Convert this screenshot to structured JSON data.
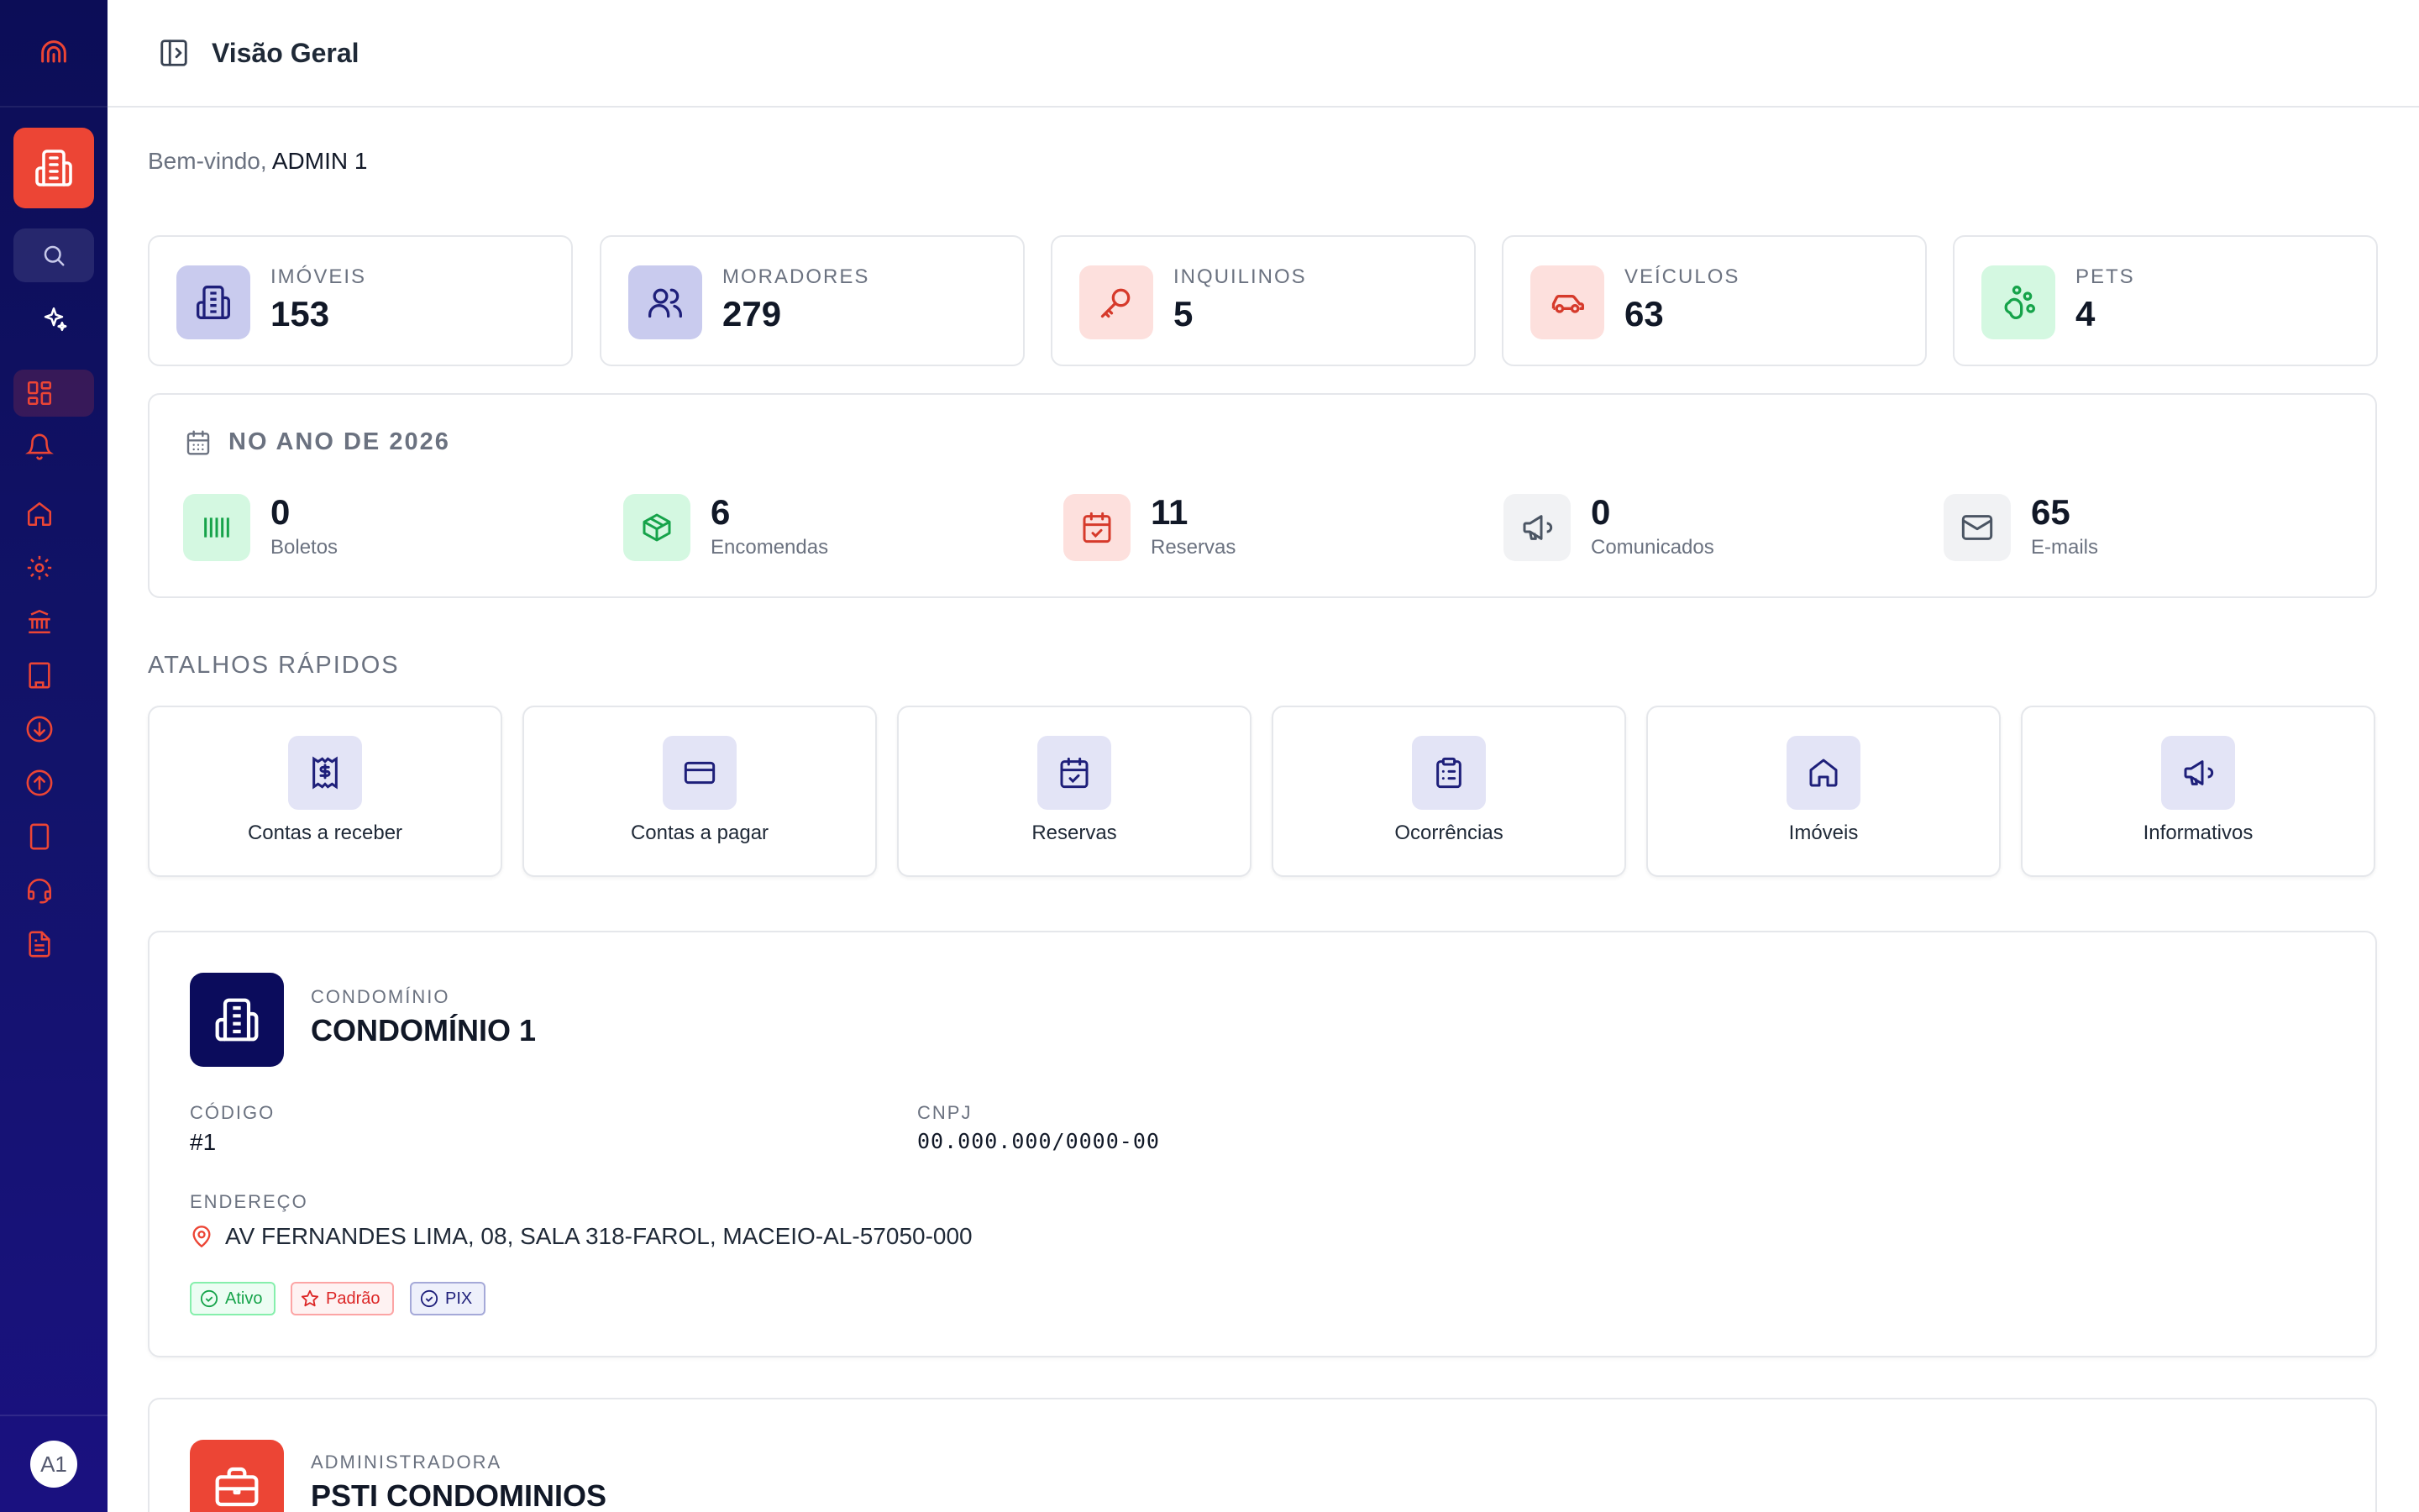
{
  "header": {
    "title": "Visão Geral"
  },
  "welcome": {
    "prefix": "Bem-vindo,",
    "user": "ADMIN 1"
  },
  "user": {
    "initials": "A1"
  },
  "stats": [
    {
      "label": "IMÓVEIS",
      "value": "153",
      "icon": "building-icon",
      "bg": "#c9cbee",
      "color": "#1e1f7a"
    },
    {
      "label": "MORADORES",
      "value": "279",
      "icon": "users-icon",
      "bg": "#c9cbee",
      "color": "#1e1f7a"
    },
    {
      "label": "INQUILINOS",
      "value": "5",
      "icon": "key-icon",
      "bg": "#fde0dd",
      "color": "#d63a2b"
    },
    {
      "label": "VEÍCULOS",
      "value": "63",
      "icon": "car-icon",
      "bg": "#fde0dd",
      "color": "#d63a2b"
    },
    {
      "label": "PETS",
      "value": "4",
      "icon": "paw-icon",
      "bg": "#d4f8e1",
      "color": "#16a34a"
    }
  ],
  "year": {
    "title": "NO ANO DE 2026",
    "metrics": [
      {
        "value": "0",
        "label": "Boletos",
        "icon": "barcode-icon",
        "bg": "#d4f8e1",
        "color": "#16a34a"
      },
      {
        "value": "6",
        "label": "Encomendas",
        "icon": "package-icon",
        "bg": "#d4f8e1",
        "color": "#16a34a"
      },
      {
        "value": "11",
        "label": "Reservas",
        "icon": "calendar-check-icon",
        "bg": "#fde0dd",
        "color": "#d63a2b"
      },
      {
        "value": "0",
        "label": "Comunicados",
        "icon": "megaphone-icon",
        "bg": "#f1f2f4",
        "color": "#4b5563"
      },
      {
        "value": "65",
        "label": "E-mails",
        "icon": "mail-icon",
        "bg": "#f1f2f4",
        "color": "#4b5563"
      }
    ]
  },
  "shortcuts": {
    "title": "ATALHOS RÁPIDOS",
    "items": [
      {
        "label": "Contas a receber",
        "icon": "receipt-icon"
      },
      {
        "label": "Contas a pagar",
        "icon": "credit-card-icon"
      },
      {
        "label": "Reservas",
        "icon": "calendar-check-icon"
      },
      {
        "label": "Ocorrências",
        "icon": "clipboard-list-icon"
      },
      {
        "label": "Imóveis",
        "icon": "home-icon"
      },
      {
        "label": "Informativos",
        "icon": "megaphone-icon"
      }
    ]
  },
  "condo": {
    "kicker": "CONDOMÍNIO",
    "name": "CONDOMÍNIO 1",
    "code_label": "CÓDIGO",
    "code": "#1",
    "cnpj_label": "CNPJ",
    "cnpj": "00.000.000/0000-00",
    "address_label": "ENDEREÇO",
    "address": "AV FERNANDES LIMA, 08, SALA 318-FAROL, MACEIO-AL-57050-000",
    "badges": [
      {
        "label": "Ativo",
        "color": "#16a34a",
        "bg": "#ecfdf3",
        "border": "#86efac"
      },
      {
        "label": "Padrão",
        "color": "#dc2626",
        "bg": "#fef2f2",
        "border": "#fca5a5"
      },
      {
        "label": "PIX",
        "color": "#1e1f7a",
        "bg": "#eef0fb",
        "border": "#a5a9d8"
      }
    ]
  },
  "admin": {
    "kicker": "ADMINISTRADORA",
    "name": "PSTI CONDOMINIOS"
  },
  "colors": {
    "sidebar": "#0c0d57",
    "accent": "#ec4535",
    "navy": "#0b0c5c"
  }
}
